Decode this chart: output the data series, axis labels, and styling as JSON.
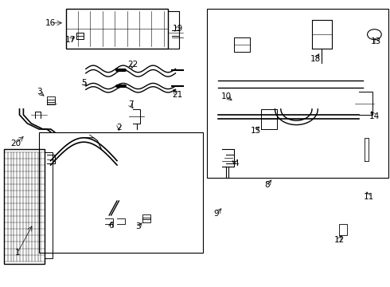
{
  "bg_color": "#ffffff",
  "line_color": "#000000",
  "fig_width": 4.9,
  "fig_height": 3.6,
  "dpi": 100,
  "font_size": 7.5
}
